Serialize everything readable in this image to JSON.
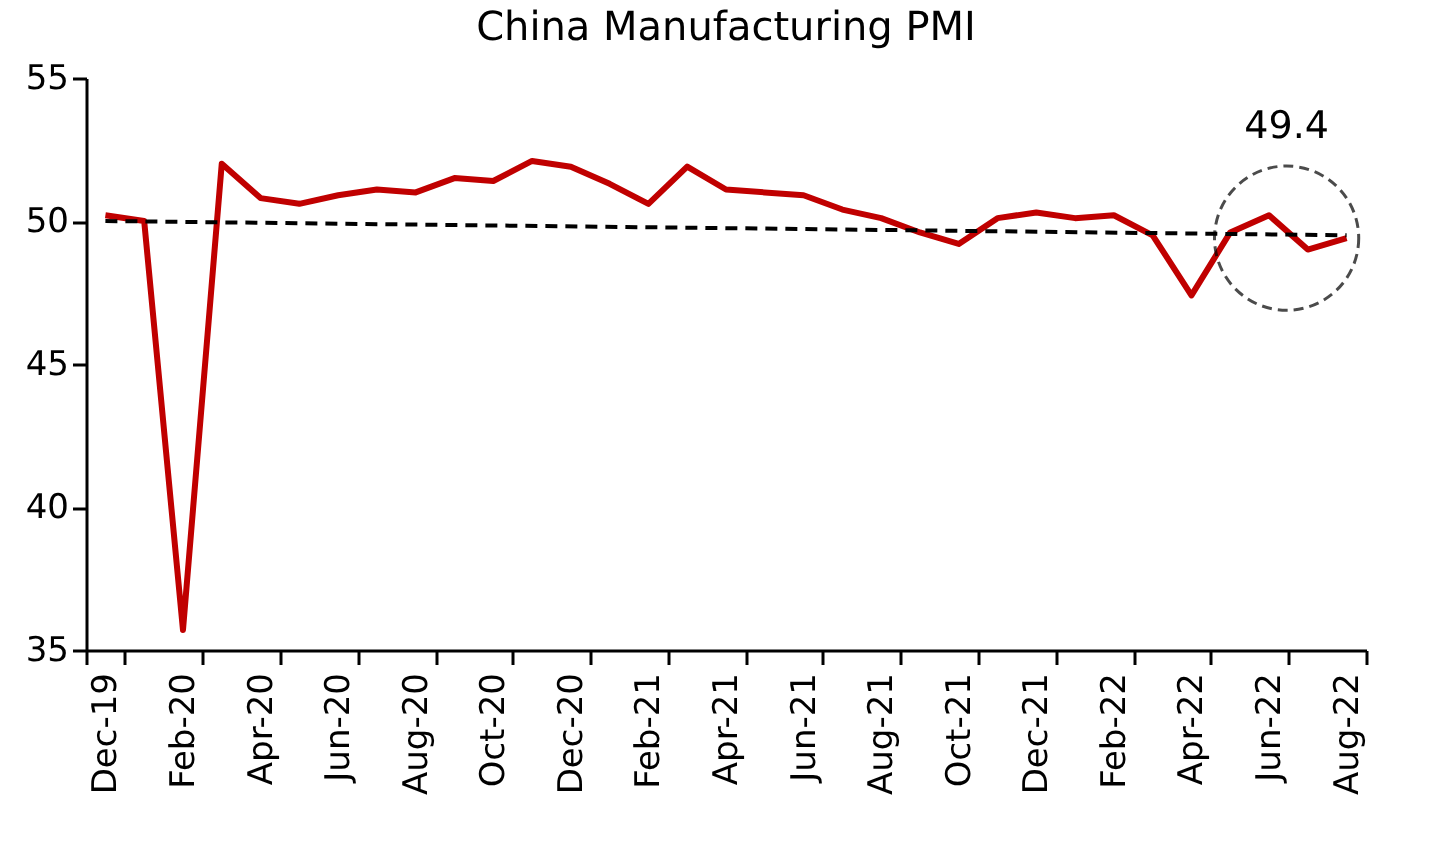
{
  "chart_data": {
    "type": "line",
    "title": "China Manufacturing PMI",
    "categories": [
      "Dec-19",
      null,
      "Feb-20",
      null,
      "Apr-20",
      null,
      "Jun-20",
      null,
      "Aug-20",
      null,
      "Oct-20",
      null,
      "Dec-20",
      null,
      "Feb-21",
      null,
      "Apr-21",
      null,
      "Jun-21",
      null,
      "Aug-21",
      null,
      "Oct-21",
      null,
      "Dec-21",
      null,
      "Feb-22",
      null,
      "Apr-22",
      null,
      "Jun-22",
      null,
      "Aug-22"
    ],
    "series": [
      {
        "color": "#c00000",
        "line_style": "solid",
        "values": [
          50.2,
          50.0,
          35.7,
          52.0,
          50.8,
          50.6,
          50.9,
          51.1,
          51.0,
          51.5,
          51.4,
          52.1,
          51.9,
          51.3,
          50.6,
          51.9,
          51.1,
          51.0,
          50.9,
          50.4,
          50.1,
          49.6,
          49.2,
          50.1,
          50.3,
          50.1,
          50.2,
          49.5,
          47.4,
          49.6,
          50.2,
          49.0,
          49.4
        ]
      },
      {
        "type": "line",
        "color": "#000000",
        "line_style": "dashed",
        "x": [
          "Dec-19",
          "Aug-22"
        ],
        "values": [
          50.0,
          49.5
        ]
      }
    ],
    "annotations": [
      {
        "text": "49.4",
        "x": "Aug-22",
        "y": 49.4
      }
    ],
    "ylim": [
      35,
      55
    ],
    "yticks": [
      35,
      40,
      45,
      50,
      55
    ],
    "grid": false
  }
}
